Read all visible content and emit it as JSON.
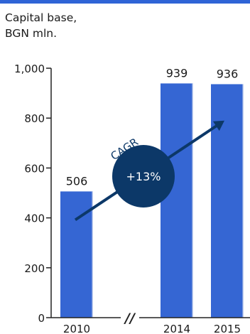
{
  "colors": {
    "top_bar": "#2f64d6",
    "bar": "#3566d3",
    "bar_edge": "#c3d0ee",
    "axis": "#222222",
    "arrow": "#0c3868",
    "bubble": "#0c3868",
    "bubble_text": "#ffffff",
    "cagr_text": "#0c3868"
  },
  "chart_data": {
    "type": "bar",
    "title": "Capital base,\nBGN mln.",
    "xlabel": "",
    "ylabel": "",
    "categories": [
      "2010",
      "2014",
      "2015"
    ],
    "values": [
      506,
      939,
      936
    ],
    "data_labels": [
      "506",
      "939",
      "936"
    ],
    "ylim": [
      0,
      1000
    ],
    "yticks": [
      0,
      200,
      400,
      600,
      800,
      1000
    ],
    "ytick_labels": [
      "0",
      "200",
      "400",
      "600",
      "800",
      "1,000"
    ],
    "grid": false,
    "legend": "none",
    "axis_break_between": [
      "2010",
      "2014"
    ],
    "axis_break_symbol": "//",
    "annotation": {
      "label": "CAGR",
      "value": "+13%"
    }
  }
}
